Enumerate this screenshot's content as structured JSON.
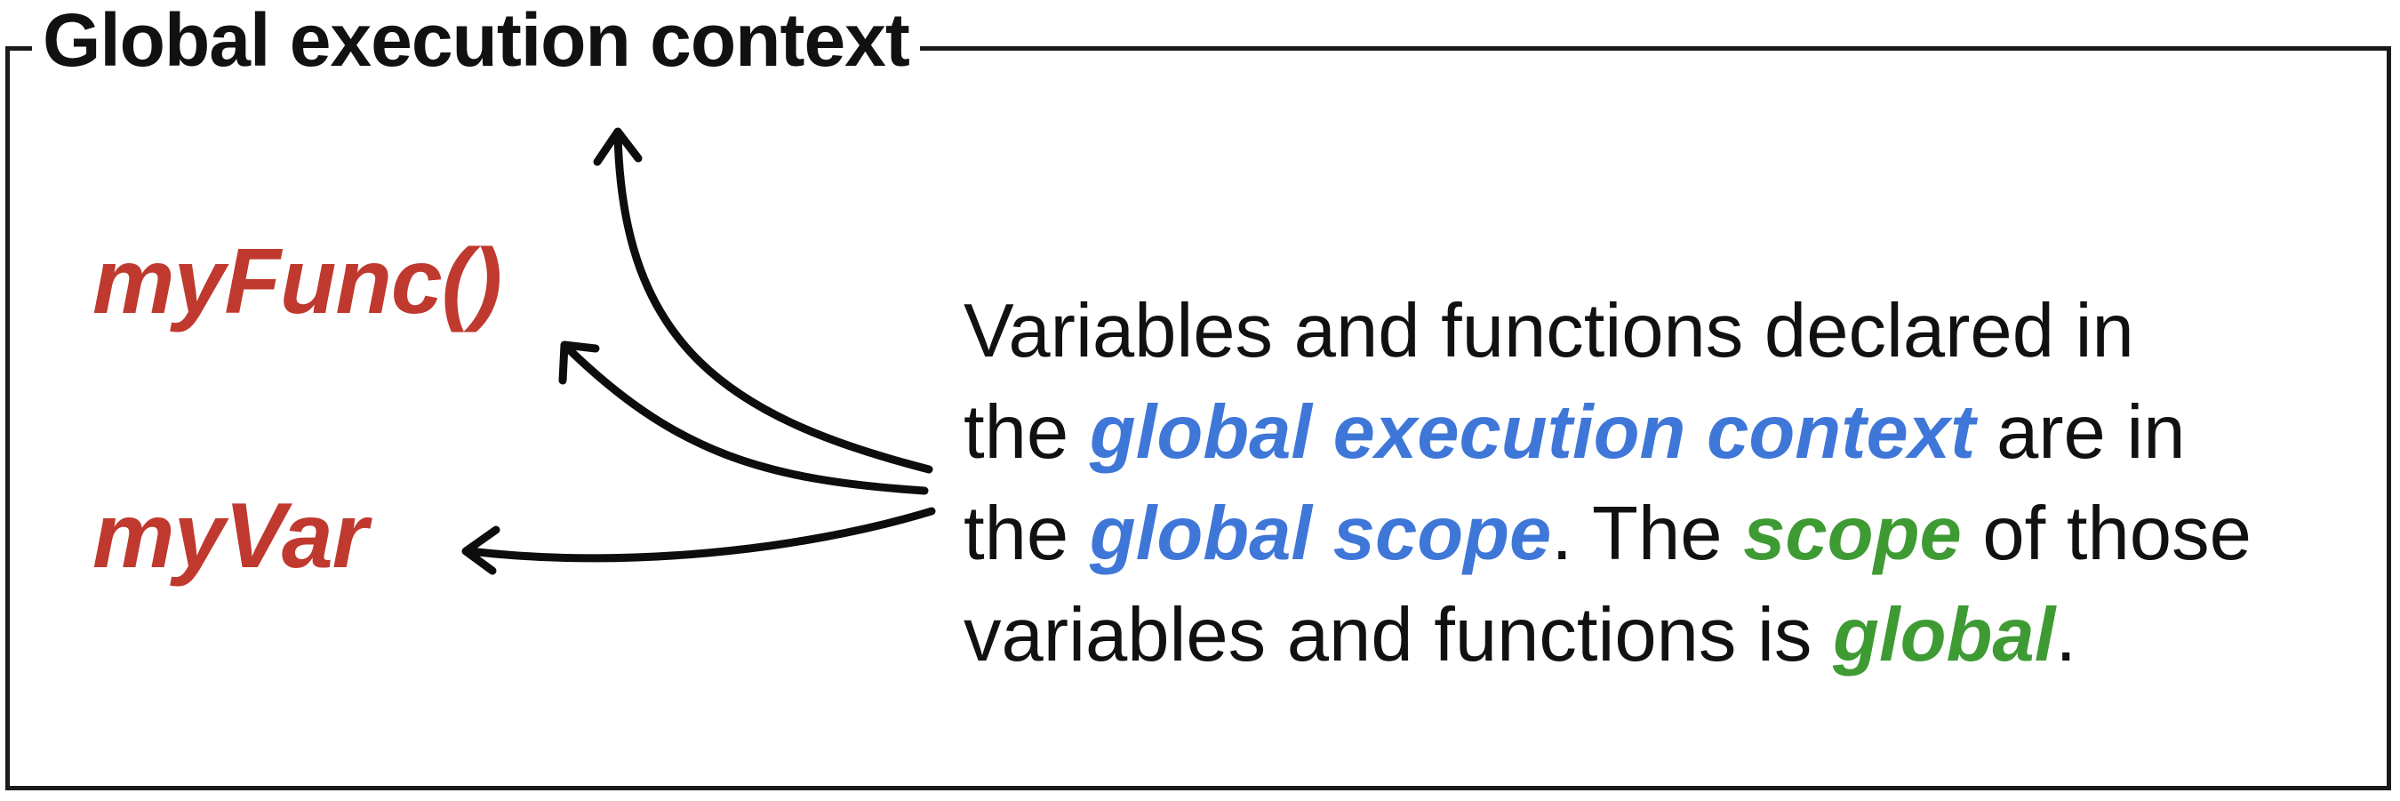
{
  "diagram": {
    "title": "Global execution context",
    "code_items": [
      {
        "id": "func",
        "text": "myFunc()"
      },
      {
        "id": "var",
        "text": "myVar"
      }
    ],
    "explanation": {
      "lines": [
        [
          {
            "text": "Variables and functions declared in",
            "style": "plain"
          }
        ],
        [
          {
            "text": "the ",
            "style": "plain"
          },
          {
            "text": "global execution context",
            "style": "blue"
          },
          {
            "text": " are in",
            "style": "plain"
          }
        ],
        [
          {
            "text": "the ",
            "style": "plain"
          },
          {
            "text": "global scope",
            "style": "blue"
          },
          {
            "text": ". The ",
            "style": "plain"
          },
          {
            "text": "scope",
            "style": "green"
          },
          {
            "text": " of those",
            "style": "plain"
          }
        ],
        [
          {
            "text": "variables and functions is ",
            "style": "plain"
          },
          {
            "text": "global",
            "style": "green"
          },
          {
            "text": ".",
            "style": "plain"
          }
        ]
      ]
    },
    "colors": {
      "code": "#c0392f",
      "blue": "#3f77d8",
      "green": "#3e9a33",
      "text": "#111111",
      "frame": "#1a1a1a"
    }
  }
}
